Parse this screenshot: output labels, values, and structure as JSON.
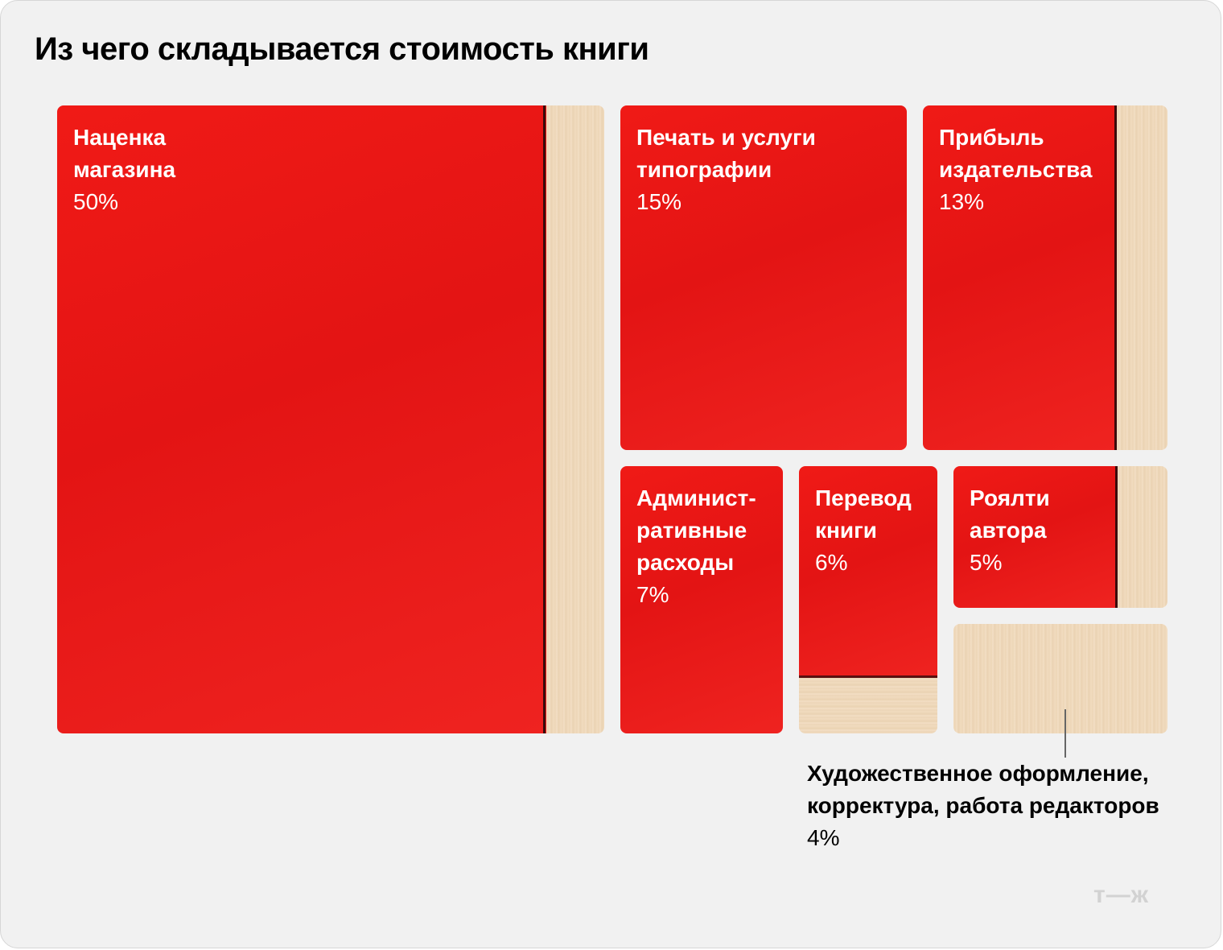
{
  "title": "Из чего складывается стоимость книги",
  "logo": "т—ж",
  "colors": {
    "cover": "#e31414",
    "pages": "#f0dabd",
    "background": "#f1f1f1"
  },
  "chart_data": {
    "type": "treemap",
    "title": "Из чего складывается стоимость книги",
    "unit": "%",
    "items": [
      {
        "name": "Наценка\nмагазина",
        "value": 50,
        "label": "50%"
      },
      {
        "name": "Печать и услуги\nтипографии",
        "value": 15,
        "label": "15%"
      },
      {
        "name": "Прибыль\nиздательства",
        "value": 13,
        "label": "13%"
      },
      {
        "name": "Админист-\nративные\nрасходы",
        "value": 7,
        "label": "7%"
      },
      {
        "name": "Перевод\nкниги",
        "value": 6,
        "label": "6%"
      },
      {
        "name": "Роялти\nавтора",
        "value": 5,
        "label": "5%"
      },
      {
        "name": "Художественное оформление,\nкорректура, работа редакторов",
        "value": 4,
        "label": "4%"
      }
    ]
  }
}
